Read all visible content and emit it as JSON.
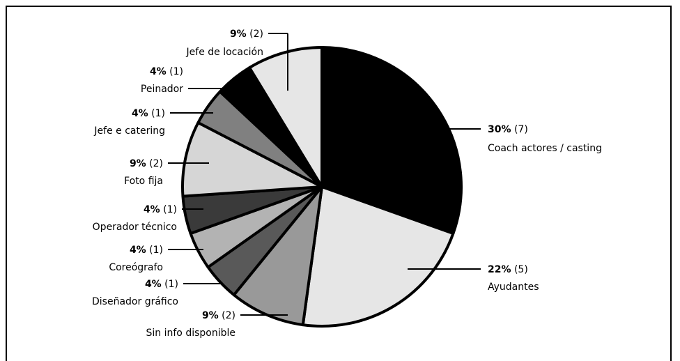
{
  "chart_data": {
    "type": "pie",
    "title": "",
    "start_angle_deg": 0,
    "direction": "clockwise",
    "slices": [
      {
        "label": "Coach actores / casting",
        "value": 7,
        "percent": "30%",
        "count": "(7)",
        "color": "#000000"
      },
      {
        "label": "Ayudantes",
        "value": 5,
        "percent": "22%",
        "count": "(5)",
        "color": "#e6e6e6"
      },
      {
        "label": "Sin info disponible",
        "value": 2,
        "percent": "9%",
        "count": "(2)",
        "color": "#999999"
      },
      {
        "label": "Diseñador gráfico",
        "value": 1,
        "percent": "4%",
        "count": "(1)",
        "color": "#595959"
      },
      {
        "label": "Coreógrafo",
        "value": 1,
        "percent": "4%",
        "count": "(1)",
        "color": "#b3b3b3"
      },
      {
        "label": "Operador técnico",
        "value": 1,
        "percent": "4%",
        "count": "(1)",
        "color": "#3a3a3a"
      },
      {
        "label": "Foto fija",
        "value": 2,
        "percent": "9%",
        "count": "(2)",
        "color": "#d6d6d6"
      },
      {
        "label": "Jefe e catering",
        "value": 1,
        "percent": "4%",
        "count": "(1)",
        "color": "#808080"
      },
      {
        "label": "Peinador",
        "value": 1,
        "percent": "4%",
        "count": "(1)",
        "color": "#000000"
      },
      {
        "label": "Jefe de locación",
        "value": 2,
        "percent": "9%",
        "count": "(2)",
        "color": "#e6e6e6"
      }
    ]
  }
}
